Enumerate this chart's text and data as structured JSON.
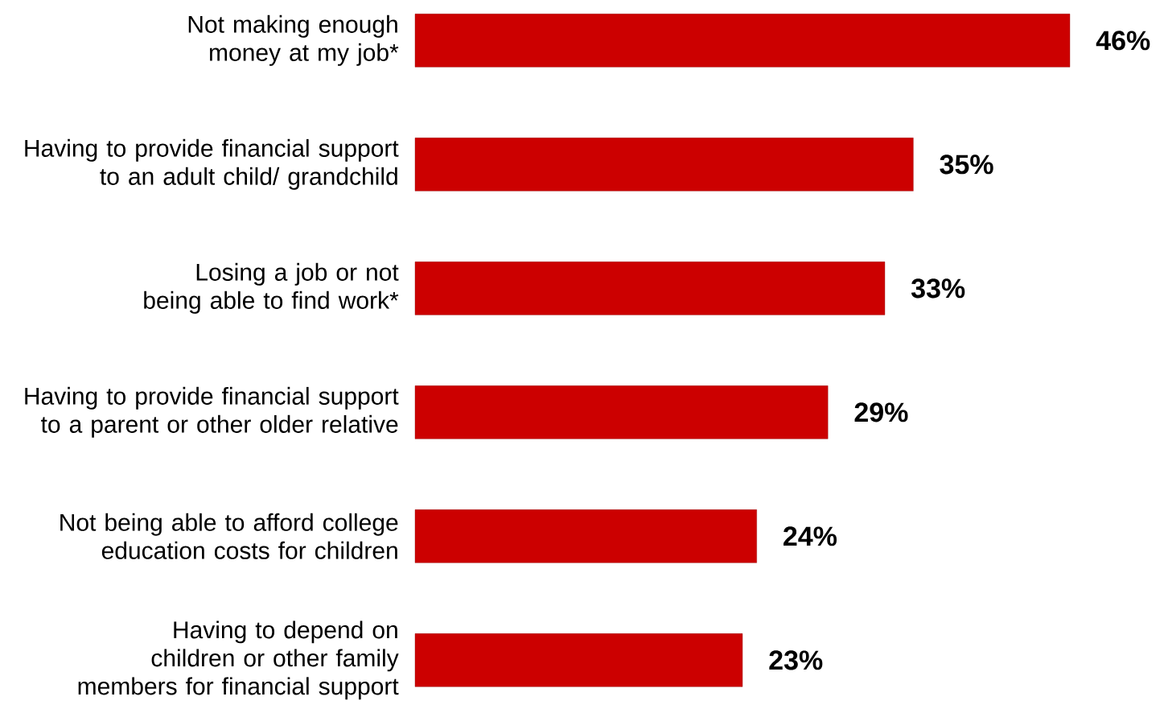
{
  "chart_data": {
    "type": "bar",
    "orientation": "horizontal",
    "categories": [
      "Not making enough money at my job*",
      "Having to provide financial support to an adult child/ grandchild",
      "Losing a job or not being able to find work*",
      "Having to provide financial support to a parent or other older relative",
      "Not being able to afford college education costs for children",
      "Having to depend on children or other family members for financial support"
    ],
    "values": [
      46,
      35,
      33,
      29,
      24,
      23
    ],
    "value_labels": [
      "46%",
      "35%",
      "33%",
      "29%",
      "24%",
      "23%"
    ],
    "color": "#cc0000",
    "xlim": [
      0,
      46
    ]
  }
}
